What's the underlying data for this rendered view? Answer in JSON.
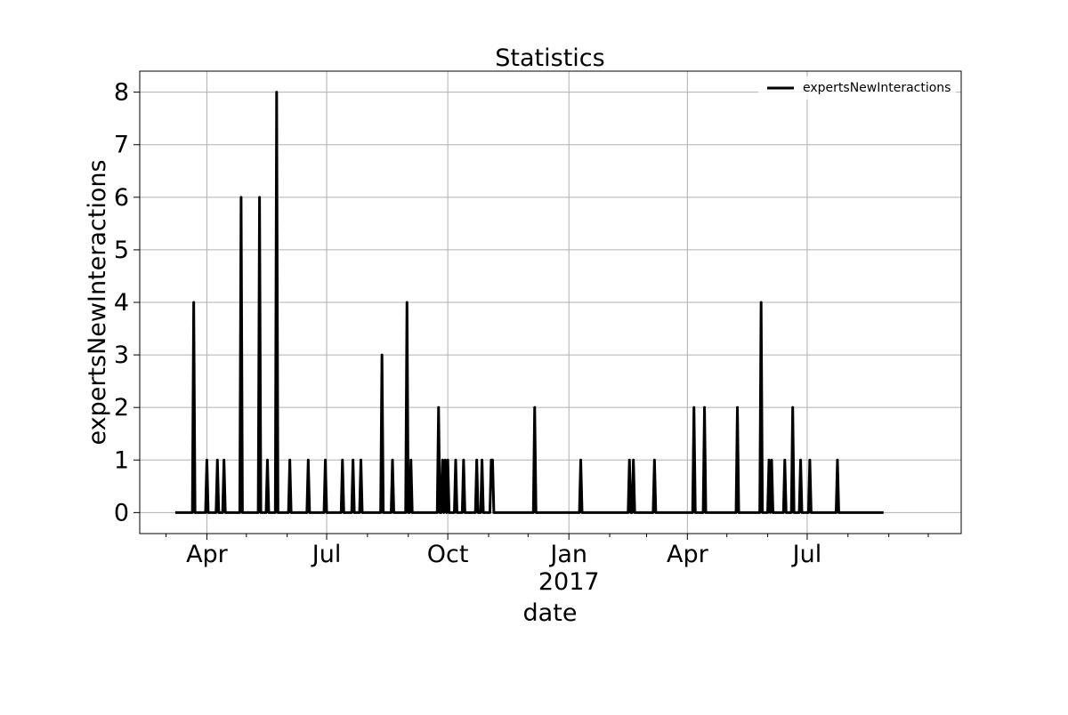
{
  "chart_data": {
    "type": "line",
    "title": "Statistics",
    "xlabel": "date",
    "ylabel": "expertsNewInteractions",
    "xlim": [
      "2016-02-10",
      "2017-10-26"
    ],
    "ylim": [
      -0.4,
      8.4
    ],
    "yticks": [
      0,
      1,
      2,
      3,
      4,
      5,
      6,
      7,
      8
    ],
    "xticks": [
      {
        "date": "2016-04-01",
        "label": "Apr",
        "sublabel": ""
      },
      {
        "date": "2016-07-01",
        "label": "Jul",
        "sublabel": ""
      },
      {
        "date": "2016-10-01",
        "label": "Oct",
        "sublabel": ""
      },
      {
        "date": "2017-01-01",
        "label": "Jan",
        "sublabel": "2017"
      },
      {
        "date": "2017-04-01",
        "label": "Apr",
        "sublabel": ""
      },
      {
        "date": "2017-07-01",
        "label": "Jul",
        "sublabel": ""
      }
    ],
    "minor_ticks": [
      "2016-03-01",
      "2016-05-01",
      "2016-06-01",
      "2016-08-01",
      "2016-09-01",
      "2016-11-01",
      "2016-12-01",
      "2017-02-01",
      "2017-03-01",
      "2017-05-01",
      "2017-06-01",
      "2017-08-01",
      "2017-09-01",
      "2017-10-01"
    ],
    "grid": true,
    "legend_position": "top-right",
    "series": [
      {
        "name": "expertsNewInteractions",
        "color": "#000000",
        "x_start": "2016-03-08",
        "x_end": "2017-08-28",
        "points": [
          [
            "2016-03-22",
            4
          ],
          [
            "2016-04-01",
            1
          ],
          [
            "2016-04-09",
            1
          ],
          [
            "2016-04-14",
            1
          ],
          [
            "2016-04-27",
            6
          ],
          [
            "2016-05-11",
            6
          ],
          [
            "2016-05-17",
            1
          ],
          [
            "2016-05-24",
            8
          ],
          [
            "2016-06-03",
            1
          ],
          [
            "2016-06-17",
            1
          ],
          [
            "2016-06-30",
            1
          ],
          [
            "2016-07-13",
            1
          ],
          [
            "2016-07-21",
            1
          ],
          [
            "2016-07-27",
            1
          ],
          [
            "2016-08-12",
            3
          ],
          [
            "2016-08-20",
            1
          ],
          [
            "2016-08-31",
            4
          ],
          [
            "2016-09-03",
            1
          ],
          [
            "2016-09-24",
            2
          ],
          [
            "2016-09-27",
            1
          ],
          [
            "2016-09-29",
            1
          ],
          [
            "2016-10-01",
            1
          ],
          [
            "2016-10-07",
            1
          ],
          [
            "2016-10-13",
            1
          ],
          [
            "2016-10-23",
            1
          ],
          [
            "2016-10-27",
            1
          ],
          [
            "2016-11-03",
            1
          ],
          [
            "2016-11-04",
            1
          ],
          [
            "2016-12-06",
            2
          ],
          [
            "2017-01-10",
            1
          ],
          [
            "2017-02-16",
            1
          ],
          [
            "2017-02-19",
            1
          ],
          [
            "2017-03-07",
            1
          ],
          [
            "2017-04-06",
            2
          ],
          [
            "2017-04-14",
            2
          ],
          [
            "2017-05-09",
            2
          ],
          [
            "2017-05-27",
            4
          ],
          [
            "2017-06-02",
            1
          ],
          [
            "2017-06-04",
            1
          ],
          [
            "2017-06-14",
            1
          ],
          [
            "2017-06-20",
            2
          ],
          [
            "2017-06-26",
            1
          ],
          [
            "2017-07-03",
            1
          ],
          [
            "2017-07-24",
            1
          ]
        ]
      }
    ]
  }
}
